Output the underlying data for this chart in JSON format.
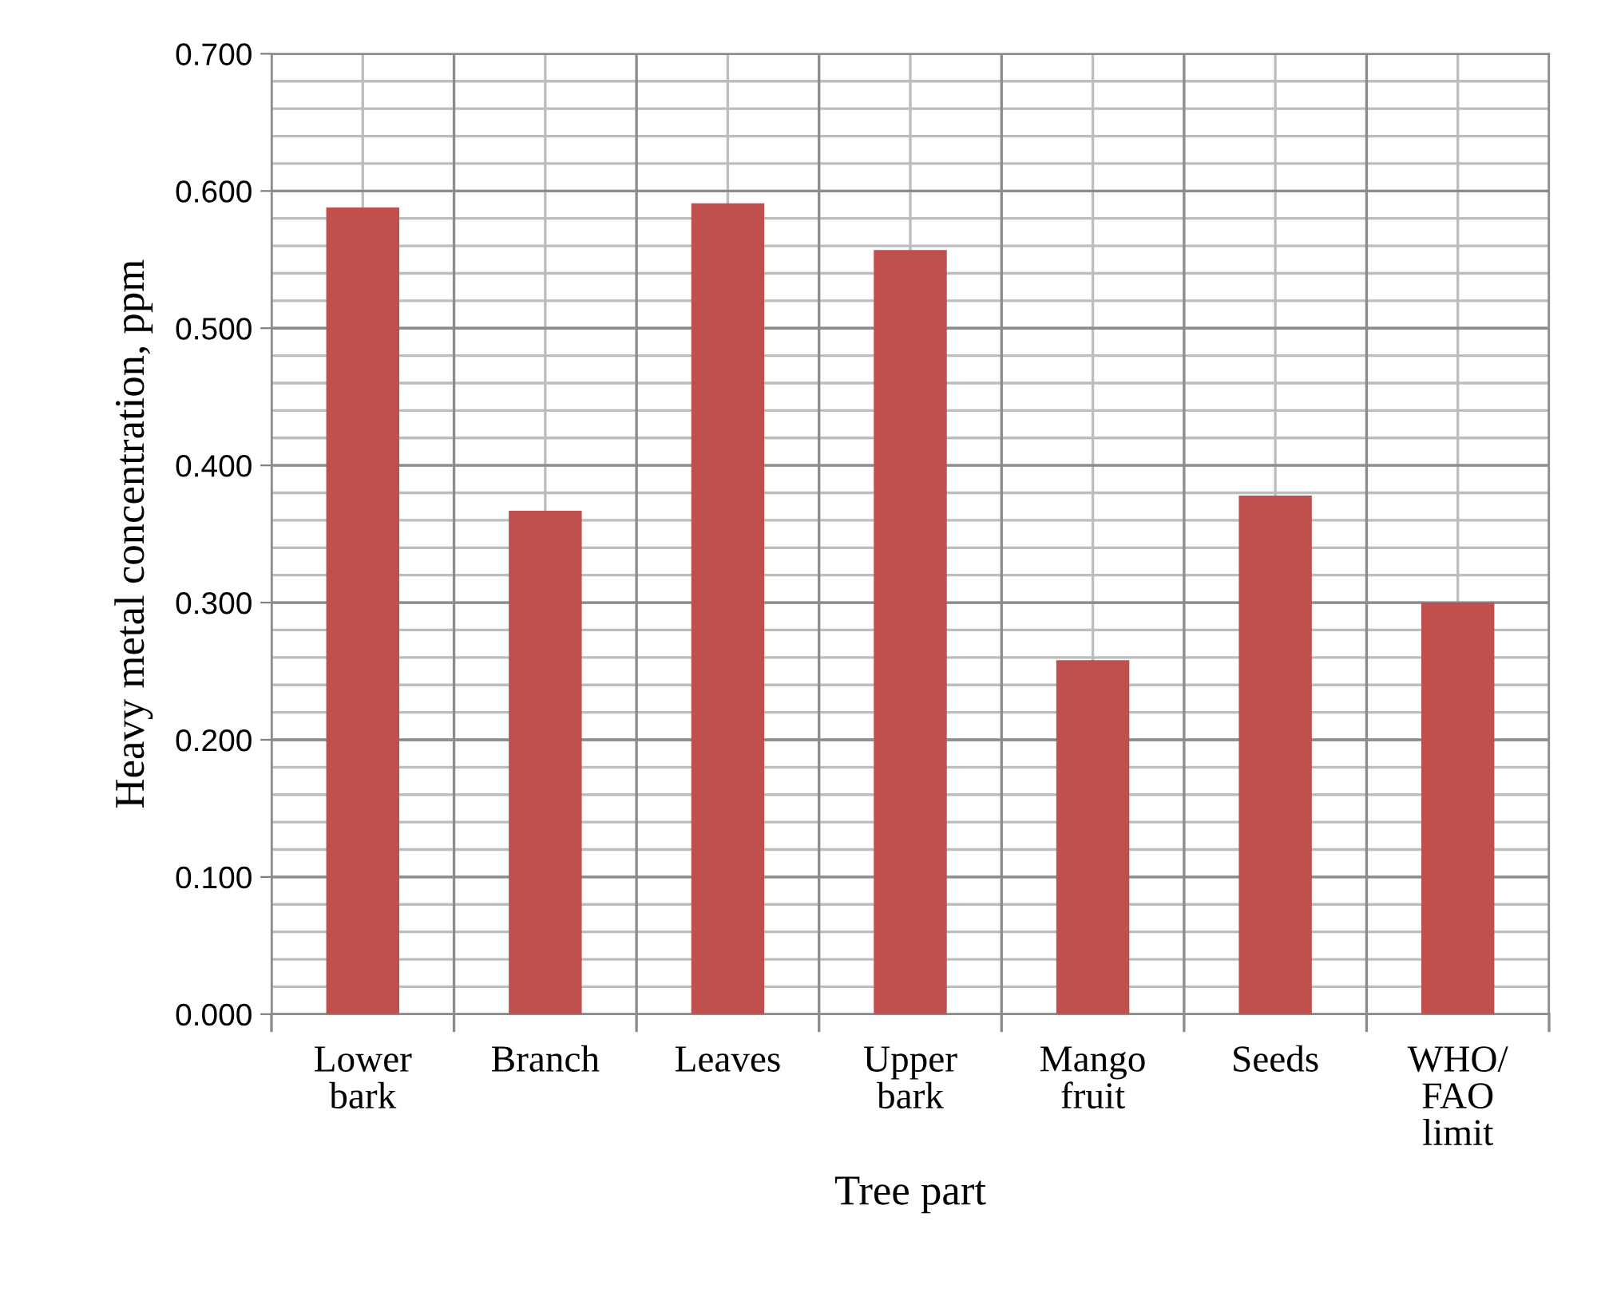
{
  "chart_data": {
    "type": "bar",
    "xlabel": "Tree part",
    "ylabel": "Heavy metal concentration, ppm",
    "categories": [
      "Lower\nbark",
      "Branch",
      "Leaves",
      "Upper\nbark",
      "Mango\nfruit",
      "Seeds",
      "WHO/\nFAO\nlimit"
    ],
    "values": [
      0.588,
      0.367,
      0.591,
      0.557,
      0.258,
      0.378,
      0.3
    ],
    "color": "#c0504d",
    "ylim": [
      0,
      0.7
    ],
    "yticks": [
      {
        "value": 0,
        "label": "0.000"
      },
      {
        "value": 0.1,
        "label": "0.100"
      },
      {
        "value": 0.2,
        "label": "0.200"
      },
      {
        "value": 0.3,
        "label": "0.300"
      },
      {
        "value": 0.4,
        "label": "0.400"
      },
      {
        "value": 0.5,
        "label": "0.500"
      },
      {
        "value": 0.6,
        "label": "0.600"
      },
      {
        "value": 0.7,
        "label": "0.700"
      }
    ],
    "grid": true
  }
}
